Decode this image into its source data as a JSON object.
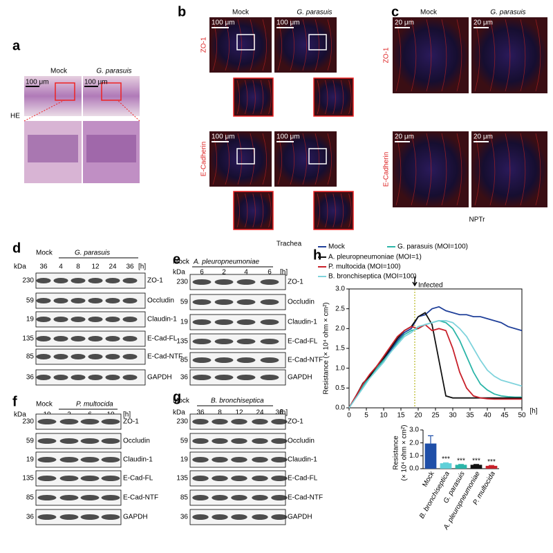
{
  "panels": {
    "a": {
      "letter": "a",
      "columns": [
        "Mock",
        "G. parasuis"
      ],
      "row_label": "HE",
      "scale": "100 μm"
    },
    "b": {
      "letter": "b",
      "columns": [
        "Mock",
        "G. parasuis"
      ],
      "rows": [
        "ZO-1",
        "E-Cadherin"
      ],
      "scale": "100 μm",
      "caption": "Trachea"
    },
    "c": {
      "letter": "c",
      "columns": [
        "Mock",
        "G. parasuis"
      ],
      "rows": [
        "ZO-1",
        "E-Cadherin"
      ],
      "scale": "20 μm",
      "caption": "NPTr"
    },
    "d": {
      "letter": "d",
      "mock": "Mock",
      "treatment": "G. parasuis",
      "unit": "kDa",
      "times": [
        "36",
        "4",
        "8",
        "12",
        "24",
        "36"
      ],
      "time_unit": "[h]",
      "markers": [
        "230",
        "59",
        "19",
        "135",
        "85",
        "36"
      ],
      "proteins": [
        "ZO-1",
        "Occludin",
        "Claudin-1",
        "E-Cad-FL",
        "E-Cad-NTF",
        "GAPDH"
      ]
    },
    "e": {
      "letter": "e",
      "mock": "Mock",
      "treatment": "A. pleuropneumoniae",
      "unit": "kDa",
      "times": [
        "6",
        "2",
        "4",
        "6"
      ],
      "time_unit": "[h]",
      "markers": [
        "230",
        "59",
        "19",
        "135",
        "85",
        "36"
      ],
      "proteins": [
        "ZO-1",
        "Occludin",
        "Claudin-1",
        "E-Cad-FL",
        "E-Cad-NTF",
        "GAPDH"
      ]
    },
    "f": {
      "letter": "f",
      "mock": "Mock",
      "treatment": "P. multocida",
      "unit": "kDa",
      "times": [
        "10",
        "2",
        "6",
        "10"
      ],
      "time_unit": "[h]",
      "markers": [
        "230",
        "59",
        "19",
        "135",
        "85",
        "36"
      ],
      "proteins": [
        "ZO-1",
        "Occludin",
        "Claudin-1",
        "E-Cad-FL",
        "E-Cad-NTF",
        "GAPDH"
      ]
    },
    "g": {
      "letter": "g",
      "mock": "Mock",
      "treatment": "B. bronchiseptica",
      "unit": "kDa",
      "times": [
        "36",
        "8",
        "12",
        "24",
        "36"
      ],
      "time_unit": "[h]",
      "markers": [
        "230",
        "59",
        "19",
        "135",
        "85",
        "36"
      ],
      "proteins": [
        "ZO-1",
        "Occludin",
        "Claudin-1",
        "E-Cad-FL",
        "E-Cad-NTF",
        "GAPDH"
      ]
    },
    "h": {
      "letter": "h"
    }
  },
  "chart_data": [
    {
      "type": "line",
      "x": [
        0,
        2,
        4,
        6,
        8,
        10,
        12,
        14,
        16,
        18,
        20,
        22,
        24,
        26,
        28,
        30,
        32,
        34,
        36,
        38,
        40,
        42,
        44,
        46,
        48,
        50
      ],
      "xlim": [
        0,
        50
      ],
      "xticks": [
        0,
        5,
        10,
        15,
        20,
        25,
        30,
        35,
        40,
        45,
        50
      ],
      "ylim": [
        0,
        3
      ],
      "yticks": [
        {
          "value": 0,
          "label": "0.0"
        },
        {
          "value": 0.5,
          "label": "0.5"
        },
        {
          "value": 1,
          "label": "1.0"
        },
        {
          "value": 1.5,
          "label": "1.5"
        },
        {
          "value": 2,
          "label": "2.0"
        },
        {
          "value": 2.5,
          "label": "2.5"
        },
        {
          "value": 3,
          "label": "3.0"
        }
      ],
      "x_label": "[h]",
      "y_label": "Resistance (× 10⁴ ohm × cm²)",
      "annotation": "Infected",
      "annotation_x": 19,
      "series": [
        {
          "name": "Mock",
          "color": "#1f3f99",
          "values": [
            0,
            0.3,
            0.6,
            0.8,
            1.0,
            1.2,
            1.45,
            1.7,
            1.9,
            2.0,
            2.3,
            2.35,
            2.5,
            2.55,
            2.45,
            2.4,
            2.35,
            2.35,
            2.3,
            2.3,
            2.25,
            2.2,
            2.15,
            2.05,
            2.0,
            1.95
          ]
        },
        {
          "name": "G. parasuis (MOI=100)",
          "color": "#2bb5a8",
          "values": [
            0,
            0.28,
            0.55,
            0.78,
            1.0,
            1.2,
            1.4,
            1.65,
            1.85,
            1.95,
            2.0,
            2.1,
            2.15,
            2.2,
            2.15,
            2.0,
            1.7,
            1.3,
            0.9,
            0.6,
            0.45,
            0.35,
            0.3,
            0.28,
            0.27,
            0.27
          ]
        },
        {
          "name": "A. pleuropneumoniae (MOI=1)",
          "color": "#111111",
          "values": [
            0,
            0.3,
            0.62,
            0.8,
            1.05,
            1.25,
            1.5,
            1.75,
            1.95,
            2.05,
            2.3,
            2.4,
            2.1,
            1.2,
            0.3,
            0.25,
            0.25,
            0.25,
            0.25,
            0.25,
            0.25,
            0.25,
            0.25,
            0.25,
            0.25,
            0.25
          ]
        },
        {
          "name": "P. multocida (MOI=100)",
          "color": "#c8202a",
          "values": [
            0,
            0.3,
            0.6,
            0.85,
            1.05,
            1.3,
            1.55,
            1.8,
            1.95,
            2.05,
            2.0,
            2.1,
            1.95,
            2.0,
            1.95,
            1.5,
            0.9,
            0.5,
            0.3,
            0.25,
            0.23,
            0.22,
            0.22,
            0.22,
            0.22,
            0.22
          ]
        },
        {
          "name": "B. bronchiseptica (MOI=100)",
          "color": "#7fd3dc",
          "values": [
            0,
            0.25,
            0.5,
            0.75,
            0.95,
            1.15,
            1.4,
            1.6,
            1.8,
            1.9,
            2.05,
            2.1,
            2.15,
            2.2,
            2.2,
            2.15,
            2.0,
            1.8,
            1.5,
            1.2,
            0.95,
            0.8,
            0.7,
            0.65,
            0.6,
            0.55
          ]
        }
      ]
    },
    {
      "type": "bar",
      "categories": [
        "Mock",
        "B. bronchiseptica",
        "G. parasuis",
        "A. pleuropneumoniae",
        "P. multocida"
      ],
      "values": [
        1.95,
        0.42,
        0.3,
        0.3,
        0.22
      ],
      "errors": [
        0.6,
        0.03,
        0.03,
        0.03,
        0.03
      ],
      "colors": [
        "#1f4fa8",
        "#5fd0d8",
        "#2bb5a8",
        "#111111",
        "#c8202a"
      ],
      "annotations": [
        null,
        "***",
        "***",
        "***",
        "***"
      ],
      "ylim": [
        0,
        3
      ],
      "yticks": [
        {
          "value": 0,
          "label": "0.0"
        },
        {
          "value": 1,
          "label": "1.0"
        },
        {
          "value": 2,
          "label": "2.0"
        },
        {
          "value": 3,
          "label": "3.0"
        }
      ],
      "y_label": [
        "Resistance",
        "(× 10⁴ ohm × cm²)"
      ]
    }
  ]
}
